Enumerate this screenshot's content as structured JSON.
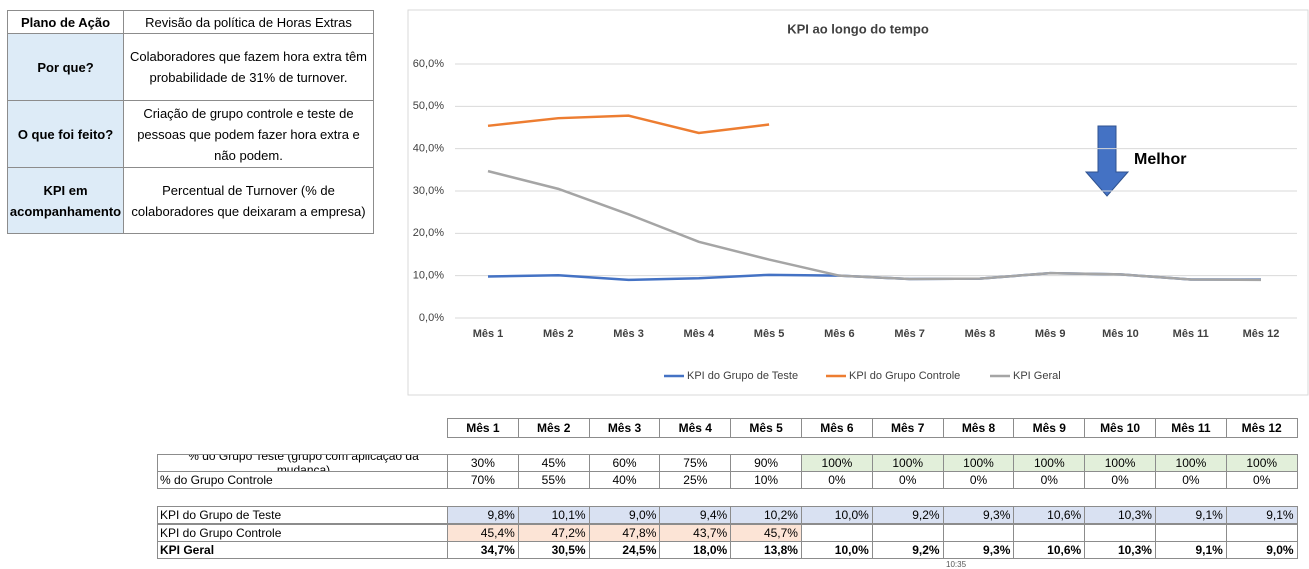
{
  "plan_table": {
    "header": [
      "Plano de Ação",
      "Revisão da política de Horas Extras"
    ],
    "rows": [
      [
        "Por que?",
        "Colaboradores que fazem hora extra têm probabilidade de 31% de turnover."
      ],
      [
        "O que foi feito?",
        "Criação de grupo controle e teste de pessoas que podem fazer hora extra e não podem."
      ],
      [
        "KPI em acompanhamento",
        "Percentual de Turnover (% de colaboradores que deixaram a empresa)"
      ]
    ]
  },
  "chart_data": {
    "type": "line",
    "title": "KPI ao longo do tempo",
    "annotation": "Melhor",
    "categories": [
      "Mês 1",
      "Mês 2",
      "Mês 3",
      "Mês 4",
      "Mês 5",
      "Mês 6",
      "Mês 7",
      "Mês 8",
      "Mês 9",
      "Mês 10",
      "Mês 11",
      "Mês 12"
    ],
    "series": [
      {
        "name": "KPI do Grupo de Teste",
        "color": "#4472c4",
        "values": [
          9.8,
          10.1,
          9.0,
          9.4,
          10.2,
          10.0,
          9.2,
          9.3,
          10.6,
          10.3,
          9.1,
          9.1
        ]
      },
      {
        "name": "KPI do Grupo Controle",
        "color": "#ed7d31",
        "values": [
          45.4,
          47.2,
          47.8,
          43.7,
          45.7,
          null,
          null,
          null,
          null,
          null,
          null,
          null
        ]
      },
      {
        "name": "KPI Geral",
        "color": "#a5a5a5",
        "values": [
          34.7,
          30.5,
          24.5,
          18.0,
          13.8,
          10.0,
          9.2,
          9.3,
          10.6,
          10.3,
          9.1,
          9.0
        ]
      }
    ],
    "ylim": [
      0,
      60
    ],
    "yticks": [
      {
        "value": 0,
        "label": "0,0%"
      },
      {
        "value": 10,
        "label": "10,0%"
      },
      {
        "value": 20,
        "label": "20,0%"
      },
      {
        "value": 30,
        "label": "30,0%"
      },
      {
        "value": 40,
        "label": "40,0%"
      },
      {
        "value": 50,
        "label": "50,0%"
      },
      {
        "value": 60,
        "label": "60,0%"
      }
    ],
    "grid": true,
    "legend": "bottom"
  },
  "group_table": {
    "header": [
      "Mês 1",
      "Mês 2",
      "Mês 3",
      "Mês 4",
      "Mês 5",
      "Mês 6",
      "Mês 7",
      "Mês 8",
      "Mês 9",
      "Mês 10",
      "Mês 11",
      "Mês 12"
    ],
    "rows": [
      {
        "label": "% do Grupo Teste (grupo com aplicação da mudança)",
        "cells": [
          "30%",
          "45%",
          "60%",
          "75%",
          "90%",
          "100%",
          "100%",
          "100%",
          "100%",
          "100%",
          "100%",
          "100%"
        ]
      },
      {
        "label": "% do Grupo Controle",
        "cells": [
          "70%",
          "55%",
          "40%",
          "25%",
          "10%",
          "0%",
          "0%",
          "0%",
          "0%",
          "0%",
          "0%",
          "0%"
        ]
      }
    ]
  },
  "kpi_table": {
    "rows": [
      {
        "label": "KPI do Grupo de Teste",
        "cells": [
          "9,8%",
          "10,1%",
          "9,0%",
          "9,4%",
          "10,2%",
          "10,0%",
          "9,2%",
          "9,3%",
          "10,6%",
          "10,3%",
          "9,1%",
          "9,1%"
        ]
      },
      {
        "label": "KPI do Grupo Controle",
        "cells": [
          "45,4%",
          "47,2%",
          "47,8%",
          "43,7%",
          "45,7%"
        ]
      },
      {
        "label": "KPI Geral",
        "cells": [
          "34,7%",
          "30,5%",
          "24,5%",
          "18,0%",
          "13,8%",
          "10,0%",
          "9,2%",
          "9,3%",
          "10,6%",
          "10,3%",
          "9,1%",
          "9,0%"
        ]
      }
    ]
  },
  "clock": "10:35"
}
